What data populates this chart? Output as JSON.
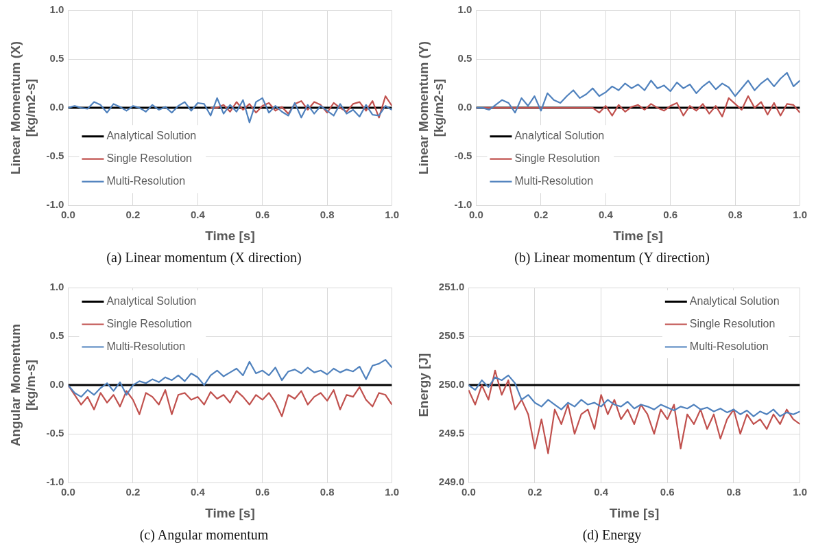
{
  "chart_data": [
    {
      "type": "line",
      "title": "(a) Linear momentum (X direction)",
      "xlabel": "Time [s]",
      "ylabel": "Linear Momentum (X) [kg/m2-s]",
      "legend": "bottom left",
      "grid": true,
      "marker": "none",
      "xlim": [
        0,
        1
      ],
      "xticks": [
        {
          "value": 0,
          "label": "0.0"
        },
        {
          "value": 0.2,
          "label": "0.2"
        },
        {
          "value": 0.4,
          "label": "0.4"
        },
        {
          "value": 0.6,
          "label": "0.6"
        },
        {
          "value": 0.8,
          "label": "0.8"
        },
        {
          "value": 1,
          "label": "1.0"
        }
      ],
      "ylim": [
        -1,
        1
      ],
      "yticks": [
        {
          "value": -1,
          "label": "-1.0"
        },
        {
          "value": -0.5,
          "label": "-0.5"
        },
        {
          "value": 0,
          "label": "0.0"
        },
        {
          "value": 0.5,
          "label": "0.5"
        },
        {
          "value": 1,
          "label": "1.0"
        }
      ],
      "x": [
        0,
        0.02,
        0.04,
        0.06,
        0.08,
        0.1,
        0.12,
        0.14,
        0.16,
        0.18,
        0.2,
        0.22,
        0.24,
        0.26,
        0.28,
        0.3,
        0.32,
        0.34,
        0.36,
        0.38,
        0.4,
        0.42,
        0.44,
        0.46,
        0.48,
        0.5,
        0.52,
        0.54,
        0.56,
        0.58,
        0.6,
        0.62,
        0.64,
        0.66,
        0.68,
        0.7,
        0.72,
        0.74,
        0.76,
        0.78,
        0.8,
        0.82,
        0.84,
        0.86,
        0.88,
        0.9,
        0.92,
        0.94,
        0.96,
        0.98,
        1
      ],
      "series": [
        {
          "name": "Analytical Solution",
          "color": "#000000",
          "values": [
            0,
            0,
            0,
            0,
            0,
            0,
            0,
            0,
            0,
            0,
            0,
            0,
            0,
            0,
            0,
            0,
            0,
            0,
            0,
            0,
            0,
            0,
            0,
            0,
            0,
            0,
            0,
            0,
            0,
            0,
            0,
            0,
            0,
            0,
            0,
            0,
            0,
            0,
            0,
            0,
            0,
            0,
            0,
            0,
            0,
            0,
            0,
            0,
            0,
            0,
            0
          ]
        },
        {
          "name": "Single Resolution",
          "color": "#c0504d",
          "values": [
            null,
            null,
            null,
            null,
            null,
            null,
            null,
            null,
            null,
            null,
            null,
            null,
            null,
            null,
            null,
            null,
            null,
            null,
            null,
            null,
            null,
            null,
            0,
            0.0,
            0.03,
            -0.04,
            0.06,
            -0.02,
            0.04,
            -0.05,
            0.02,
            0.05,
            -0.03,
            0.01,
            -0.06,
            0.04,
            0.07,
            -0.02,
            0.06,
            0.03,
            -0.05,
            0.05,
            0.0,
            -0.04,
            0.04,
            0.06,
            -0.03,
            0.07,
            -0.1,
            0.12,
            0.02
          ]
        },
        {
          "name": "Multi-Resolution",
          "color": "#4f81bd",
          "values": [
            0,
            0.02,
            0,
            -0.01,
            0.06,
            0.03,
            -0.05,
            0.04,
            0.01,
            -0.03,
            0.02,
            0.0,
            -0.04,
            0.03,
            -0.02,
            0.01,
            -0.05,
            0.02,
            0.06,
            -0.03,
            0.05,
            0.04,
            -0.08,
            0.1,
            -0.06,
            0.03,
            -0.04,
            0.08,
            -0.15,
            0.06,
            0.1,
            -0.05,
            0.02,
            -0.04,
            -0.08,
            0.05,
            -0.1,
            0.03,
            -0.06,
            0.02,
            -0.03,
            -0.08,
            0.04,
            -0.06,
            -0.02,
            -0.09,
            0.03,
            -0.07,
            -0.08,
            0.02,
            -0.02
          ]
        }
      ]
    },
    {
      "type": "line",
      "title": "(b) Linear momentum (Y direction)",
      "xlabel": "Time [s]",
      "ylabel": "Linear Momentum (Y) [kg/m2-s]",
      "legend": "bottom left",
      "grid": true,
      "marker": "none",
      "xlim": [
        0,
        1
      ],
      "xticks": [
        {
          "value": 0,
          "label": "0.0"
        },
        {
          "value": 0.2,
          "label": "0.2"
        },
        {
          "value": 0.4,
          "label": "0.4"
        },
        {
          "value": 0.6,
          "label": "0.6"
        },
        {
          "value": 0.8,
          "label": "0.8"
        },
        {
          "value": 1,
          "label": "1.0"
        }
      ],
      "ylim": [
        -1,
        1
      ],
      "yticks": [
        {
          "value": -1,
          "label": "-1.0"
        },
        {
          "value": -0.5,
          "label": "-0.5"
        },
        {
          "value": 0,
          "label": "0.0"
        },
        {
          "value": 0.5,
          "label": "0.5"
        },
        {
          "value": 1,
          "label": "1.0"
        }
      ],
      "x": [
        0,
        0.02,
        0.04,
        0.06,
        0.08,
        0.1,
        0.12,
        0.14,
        0.16,
        0.18,
        0.2,
        0.22,
        0.24,
        0.26,
        0.28,
        0.3,
        0.32,
        0.34,
        0.36,
        0.38,
        0.4,
        0.42,
        0.44,
        0.46,
        0.48,
        0.5,
        0.52,
        0.54,
        0.56,
        0.58,
        0.6,
        0.62,
        0.64,
        0.66,
        0.68,
        0.7,
        0.72,
        0.74,
        0.76,
        0.78,
        0.8,
        0.82,
        0.84,
        0.86,
        0.88,
        0.9,
        0.92,
        0.94,
        0.96,
        0.98,
        1
      ],
      "series": [
        {
          "name": "Analytical Solution",
          "color": "#000000",
          "values": [
            0,
            0,
            0,
            0,
            0,
            0,
            0,
            0,
            0,
            0,
            0,
            0,
            0,
            0,
            0,
            0,
            0,
            0,
            0,
            0,
            0,
            0,
            0,
            0,
            0,
            0,
            0,
            0,
            0,
            0,
            0,
            0,
            0,
            0,
            0,
            0,
            0,
            0,
            0,
            0,
            0,
            0,
            0,
            0,
            0,
            0,
            0,
            0,
            0,
            0,
            0
          ]
        },
        {
          "name": "Single Resolution",
          "color": "#c0504d",
          "values": [
            0,
            0,
            0,
            0,
            0,
            0,
            0,
            0,
            0,
            0,
            0,
            0,
            0,
            0,
            0,
            0,
            0,
            0,
            0,
            -0.05,
            0.02,
            -0.08,
            0.03,
            -0.04,
            0.01,
            0.03,
            -0.02,
            0.04,
            0.0,
            -0.03,
            0.02,
            0.05,
            -0.08,
            0.02,
            -0.03,
            0.04,
            -0.06,
            0.02,
            -0.09,
            0.1,
            0.04,
            -0.02,
            0.12,
            0.0,
            0.06,
            -0.07,
            0.05,
            -0.08,
            0.04,
            0.03,
            -0.05
          ]
        },
        {
          "name": "Multi-Resolution",
          "color": "#4f81bd",
          "values": [
            0,
            0,
            -0.02,
            0.03,
            0.08,
            0.05,
            -0.05,
            0.1,
            0.02,
            0.12,
            -0.03,
            0.15,
            0.08,
            0.05,
            0.12,
            0.18,
            0.1,
            0.14,
            0.2,
            0.12,
            0.16,
            0.22,
            0.18,
            0.25,
            0.2,
            0.24,
            0.18,
            0.28,
            0.2,
            0.23,
            0.17,
            0.26,
            0.2,
            0.24,
            0.15,
            0.22,
            0.27,
            0.19,
            0.25,
            0.21,
            0.12,
            0.2,
            0.28,
            0.18,
            0.25,
            0.3,
            0.22,
            0.3,
            0.36,
            0.22,
            0.28
          ]
        }
      ]
    },
    {
      "type": "line",
      "title": "(c) Angular momentum",
      "xlabel": "Time [s]",
      "ylabel": "Angular Momentum [kg/m-s]",
      "legend": "top left",
      "grid": true,
      "marker": "none",
      "xlim": [
        0,
        1
      ],
      "xticks": [
        {
          "value": 0,
          "label": "0.0"
        },
        {
          "value": 0.2,
          "label": "0.2"
        },
        {
          "value": 0.4,
          "label": "0.4"
        },
        {
          "value": 0.6,
          "label": "0.6"
        },
        {
          "value": 0.8,
          "label": "0.8"
        },
        {
          "value": 1,
          "label": "1.0"
        }
      ],
      "ylim": [
        -1,
        1
      ],
      "yticks": [
        {
          "value": -1,
          "label": "-1.0"
        },
        {
          "value": -0.5,
          "label": "-0.5"
        },
        {
          "value": 0,
          "label": "0.0"
        },
        {
          "value": 0.5,
          "label": "0.5"
        },
        {
          "value": 1,
          "label": "1.0"
        }
      ],
      "x": [
        0,
        0.02,
        0.04,
        0.06,
        0.08,
        0.1,
        0.12,
        0.14,
        0.16,
        0.18,
        0.2,
        0.22,
        0.24,
        0.26,
        0.28,
        0.3,
        0.32,
        0.34,
        0.36,
        0.38,
        0.4,
        0.42,
        0.44,
        0.46,
        0.48,
        0.5,
        0.52,
        0.54,
        0.56,
        0.58,
        0.6,
        0.62,
        0.64,
        0.66,
        0.68,
        0.7,
        0.72,
        0.74,
        0.76,
        0.78,
        0.8,
        0.82,
        0.84,
        0.86,
        0.88,
        0.9,
        0.92,
        0.94,
        0.96,
        0.98,
        1
      ],
      "series": [
        {
          "name": "Analytical Solution",
          "color": "#000000",
          "values": [
            0,
            0,
            0,
            0,
            0,
            0,
            0,
            0,
            0,
            0,
            0,
            0,
            0,
            0,
            0,
            0,
            0,
            0,
            0,
            0,
            0,
            0,
            0,
            0,
            0,
            0,
            0,
            0,
            0,
            0,
            0,
            0,
            0,
            0,
            0,
            0,
            0,
            0,
            0,
            0,
            0,
            0,
            0,
            0,
            0,
            0,
            0,
            0,
            0,
            0,
            0
          ]
        },
        {
          "name": "Single Resolution",
          "color": "#c0504d",
          "values": [
            0,
            -0.1,
            -0.2,
            -0.12,
            -0.25,
            -0.08,
            -0.18,
            -0.1,
            -0.22,
            -0.06,
            -0.15,
            -0.3,
            -0.08,
            -0.12,
            -0.2,
            -0.05,
            -0.3,
            -0.1,
            -0.08,
            -0.15,
            -0.12,
            -0.2,
            -0.07,
            -0.14,
            -0.1,
            -0.18,
            -0.06,
            -0.12,
            -0.2,
            -0.1,
            -0.15,
            -0.08,
            -0.18,
            -0.32,
            -0.1,
            -0.14,
            -0.06,
            -0.2,
            -0.12,
            -0.08,
            -0.16,
            -0.05,
            -0.25,
            -0.1,
            -0.12,
            -0.02,
            -0.15,
            -0.22,
            -0.08,
            -0.1,
            -0.2
          ]
        },
        {
          "name": "Multi-Resolution",
          "color": "#4f81bd",
          "values": [
            0,
            -0.08,
            -0.12,
            -0.05,
            -0.1,
            -0.03,
            0.02,
            -0.06,
            0.03,
            -0.1,
            0.0,
            0.04,
            0.02,
            0.06,
            0.03,
            0.08,
            0.05,
            0.1,
            0.04,
            0.12,
            0.08,
            0.0,
            0.1,
            0.15,
            0.09,
            0.13,
            0.17,
            0.1,
            0.24,
            0.12,
            0.15,
            0.1,
            0.18,
            0.05,
            0.14,
            0.16,
            0.12,
            0.18,
            0.13,
            0.15,
            0.11,
            0.17,
            0.13,
            0.16,
            0.14,
            0.19,
            0.06,
            0.2,
            0.22,
            0.26,
            0.18
          ]
        }
      ]
    },
    {
      "type": "line",
      "title": "(d) Energy",
      "xlabel": "Time [s]",
      "ylabel": "Energy [J]",
      "legend": "top right",
      "grid": true,
      "marker": "none",
      "xlim": [
        0,
        1
      ],
      "xticks": [
        {
          "value": 0,
          "label": "0.0"
        },
        {
          "value": 0.2,
          "label": "0.2"
        },
        {
          "value": 0.4,
          "label": "0.4"
        },
        {
          "value": 0.6,
          "label": "0.6"
        },
        {
          "value": 0.8,
          "label": "0.8"
        },
        {
          "value": 1,
          "label": "1.0"
        }
      ],
      "ylim": [
        249,
        251
      ],
      "yticks": [
        {
          "value": 249,
          "label": "249.0"
        },
        249.5,
        {
          "value": 250,
          "label": "250.0"
        },
        250.5,
        {
          "value": 251,
          "label": "251.0"
        }
      ],
      "x": [
        0,
        0.02,
        0.04,
        0.06,
        0.08,
        0.1,
        0.12,
        0.14,
        0.16,
        0.18,
        0.2,
        0.22,
        0.24,
        0.26,
        0.28,
        0.3,
        0.32,
        0.34,
        0.36,
        0.38,
        0.4,
        0.42,
        0.44,
        0.46,
        0.48,
        0.5,
        0.52,
        0.54,
        0.56,
        0.58,
        0.6,
        0.62,
        0.64,
        0.66,
        0.68,
        0.7,
        0.72,
        0.74,
        0.76,
        0.78,
        0.8,
        0.82,
        0.84,
        0.86,
        0.88,
        0.9,
        0.92,
        0.94,
        0.96,
        0.98,
        1
      ],
      "series": [
        {
          "name": "Analytical Solution",
          "color": "#000000",
          "values": [
            250,
            250,
            250,
            250,
            250,
            250,
            250,
            250,
            250,
            250,
            250,
            250,
            250,
            250,
            250,
            250,
            250,
            250,
            250,
            250,
            250,
            250,
            250,
            250,
            250,
            250,
            250,
            250,
            250,
            250,
            250,
            250,
            250,
            250,
            250,
            250,
            250,
            250,
            250,
            250,
            250,
            250,
            250,
            250,
            250,
            250,
            250,
            250,
            250,
            250,
            250
          ]
        },
        {
          "name": "Single Resolution",
          "color": "#c0504d",
          "values": [
            249.95,
            249.8,
            250.0,
            249.85,
            250.15,
            249.9,
            250.05,
            249.75,
            249.85,
            249.7,
            249.35,
            249.65,
            249.3,
            249.75,
            249.6,
            249.8,
            249.5,
            249.7,
            249.75,
            249.55,
            249.9,
            249.7,
            249.85,
            249.65,
            249.75,
            249.6,
            249.8,
            249.7,
            249.5,
            249.75,
            249.65,
            249.8,
            249.35,
            249.7,
            249.6,
            249.75,
            249.55,
            249.7,
            249.45,
            249.65,
            249.75,
            249.5,
            249.7,
            249.6,
            249.65,
            249.55,
            249.7,
            249.6,
            249.75,
            249.65,
            249.6
          ]
        },
        {
          "name": "Multi-Resolution",
          "color": "#4f81bd",
          "values": [
            250.0,
            249.95,
            250.05,
            249.98,
            250.08,
            250.05,
            250.1,
            250.02,
            249.85,
            249.9,
            249.82,
            249.78,
            249.85,
            249.8,
            249.75,
            249.82,
            249.78,
            249.85,
            249.8,
            249.82,
            249.78,
            249.85,
            249.8,
            249.78,
            249.83,
            249.76,
            249.8,
            249.78,
            249.75,
            249.8,
            249.77,
            249.74,
            249.78,
            249.76,
            249.8,
            249.75,
            249.77,
            249.73,
            249.76,
            249.72,
            249.75,
            249.7,
            249.74,
            249.68,
            249.73,
            249.7,
            249.75,
            249.68,
            249.72,
            249.7,
            249.73
          ]
        }
      ]
    }
  ]
}
